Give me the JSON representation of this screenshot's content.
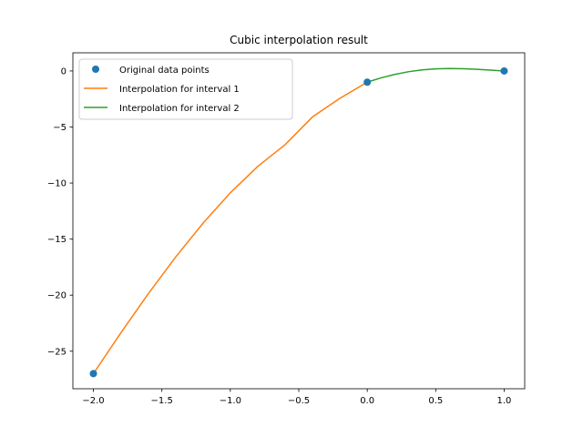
{
  "chart_data": {
    "type": "line",
    "title": "Cubic interpolation result",
    "xlabel": "",
    "ylabel": "",
    "xlim": [
      -2.15,
      1.15
    ],
    "ylim": [
      -28.35,
      1.62
    ],
    "xticks": [
      -2.0,
      -1.5,
      -1.0,
      -0.5,
      0.0,
      0.5,
      1.0
    ],
    "xtick_labels": [
      "−2.0",
      "−1.5",
      "−1.0",
      "−0.5",
      "0.0",
      "0.5",
      "1.0"
    ],
    "yticks": [
      0,
      -5,
      -10,
      -15,
      -20,
      -25
    ],
    "ytick_labels": [
      "0",
      "−5",
      "−10",
      "−15",
      "−20",
      "−25"
    ],
    "grid": false,
    "legend_position": "upper-left",
    "series": [
      {
        "name": "Original data points",
        "kind": "scatter",
        "color": "#1f77b4",
        "x": [
          -2,
          0,
          1
        ],
        "y": [
          -27,
          -1,
          0
        ]
      },
      {
        "name": "Interpolation for interval 1",
        "kind": "line",
        "color": "#ff7f0e",
        "x": [
          -2.0,
          -1.8,
          -1.6,
          -1.4,
          -1.2,
          -1.0,
          -0.8,
          -0.6,
          -0.4,
          -0.2,
          0.0
        ],
        "y": [
          -27.0,
          -23.37,
          -19.89,
          -16.61,
          -13.59,
          -10.87,
          -8.52,
          -6.58,
          -4.1,
          -2.44,
          -1.0
        ]
      },
      {
        "name": "Interpolation for interval 2",
        "kind": "line",
        "color": "#2ca02c",
        "x": [
          0.0,
          0.1,
          0.2,
          0.3,
          0.4,
          0.5,
          0.6,
          0.7,
          0.8,
          0.9,
          1.0
        ],
        "y": [
          -1.0,
          -0.62,
          -0.31,
          -0.07,
          0.1,
          0.19,
          0.22,
          0.2,
          0.15,
          0.08,
          0.0
        ]
      }
    ]
  }
}
